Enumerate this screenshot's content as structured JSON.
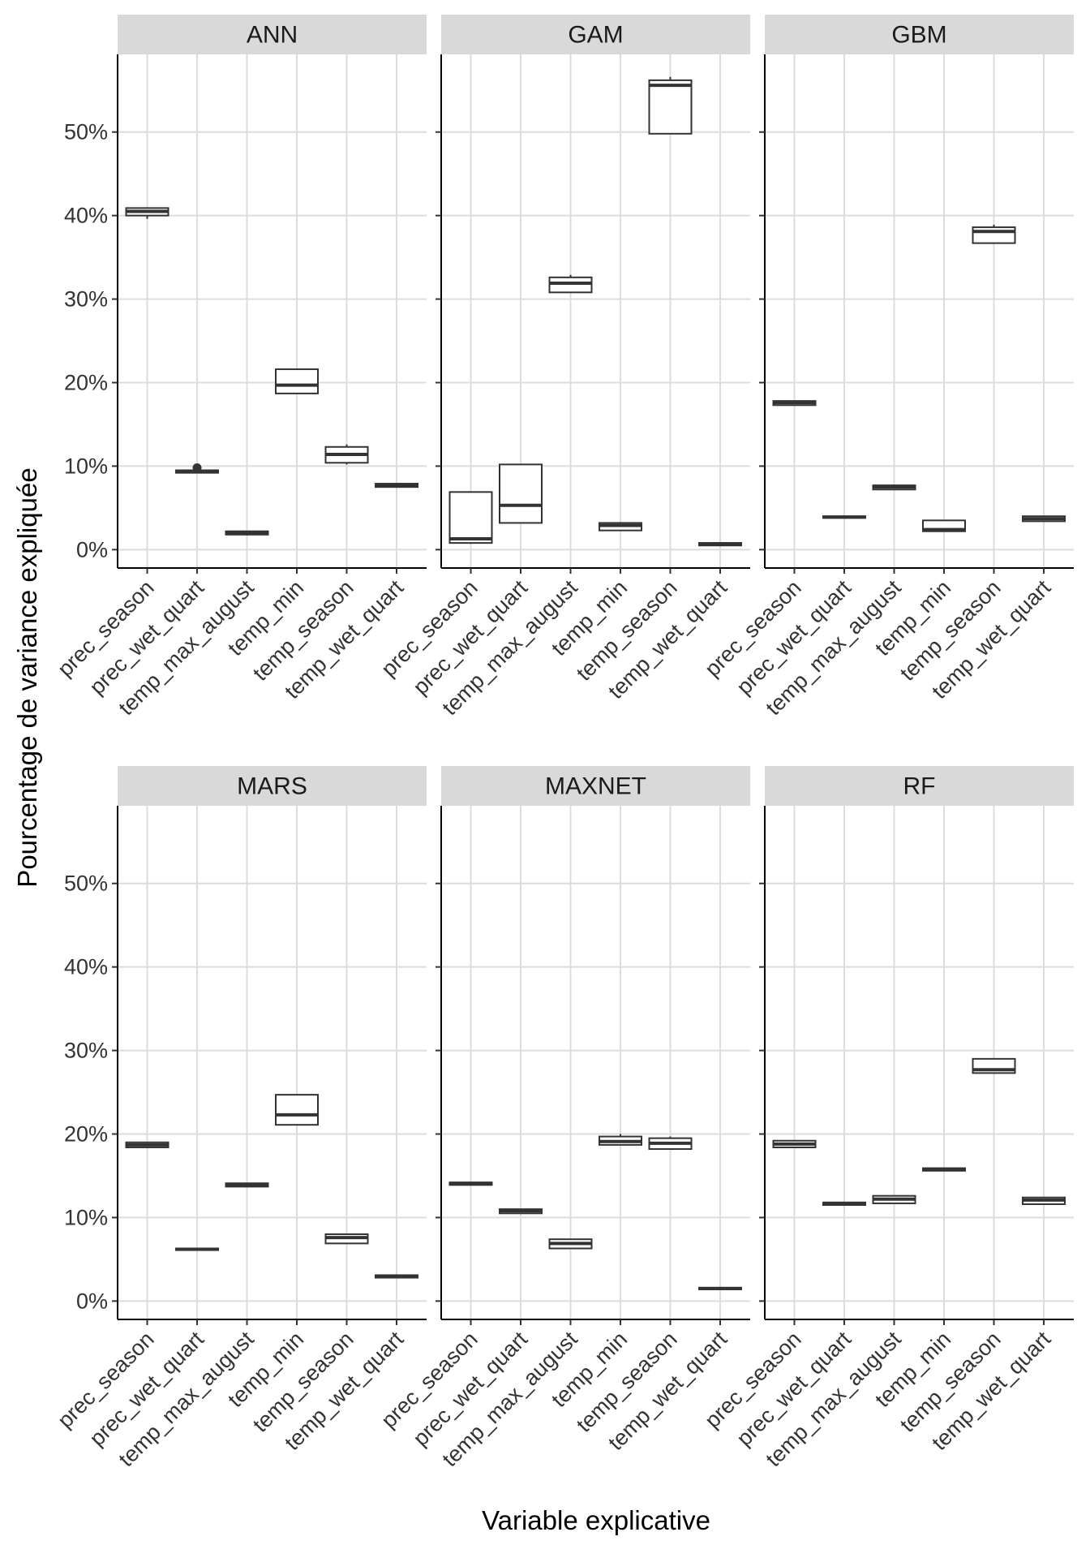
{
  "chart_data": {
    "type": "boxplot",
    "xlabel": "Variable explicative",
    "ylabel": "Pourcentage de variance expliquée",
    "ylim": [
      -2.2,
      59.3
    ],
    "y_ticks": [
      0,
      10,
      20,
      30,
      40,
      50
    ],
    "y_tick_labels": [
      "0%",
      "10%",
      "20%",
      "30%",
      "40%",
      "50%"
    ],
    "grid": true,
    "categories": [
      "prec_season",
      "prec_wet_quart",
      "temp_max_august",
      "temp_min",
      "temp_season",
      "temp_wet_quart"
    ],
    "panels": [
      {
        "name": "ANN",
        "boxes": [
          {
            "category": "prec_season",
            "min": 39.6,
            "q1": 40.0,
            "median": 40.5,
            "q3": 40.9,
            "max": 40.9
          },
          {
            "category": "prec_wet_quart",
            "min": 9.2,
            "q1": 9.2,
            "median": 9.4,
            "q3": 9.5,
            "max": 9.6,
            "outliers": [
              9.8
            ]
          },
          {
            "category": "temp_max_august",
            "min": 1.7,
            "q1": 1.8,
            "median": 2.0,
            "q3": 2.2,
            "max": 2.2
          },
          {
            "category": "temp_min",
            "min": 18.7,
            "q1": 18.7,
            "median": 19.7,
            "q3": 21.6,
            "max": 21.6
          },
          {
            "category": "temp_season",
            "min": 10.2,
            "q1": 10.4,
            "median": 11.4,
            "q3": 12.3,
            "max": 12.6
          },
          {
            "category": "temp_wet_quart",
            "min": 7.5,
            "q1": 7.5,
            "median": 7.7,
            "q3": 7.9,
            "max": 7.9
          }
        ]
      },
      {
        "name": "GAM",
        "boxes": [
          {
            "category": "prec_season",
            "min": 0.7,
            "q1": 0.8,
            "median": 1.3,
            "q3": 6.9,
            "max": 6.9
          },
          {
            "category": "prec_wet_quart",
            "min": 3.2,
            "q1": 3.2,
            "median": 5.3,
            "q3": 10.2,
            "max": 10.2
          },
          {
            "category": "temp_max_august",
            "min": 30.8,
            "q1": 30.8,
            "median": 31.9,
            "q3": 32.6,
            "max": 32.9
          },
          {
            "category": "temp_min",
            "min": 2.3,
            "q1": 2.3,
            "median": 2.9,
            "q3": 3.2,
            "max": 3.2
          },
          {
            "category": "temp_season",
            "min": 49.8,
            "q1": 49.8,
            "median": 55.6,
            "q3": 56.2,
            "max": 56.6
          },
          {
            "category": "temp_wet_quart",
            "min": 0.5,
            "q1": 0.5,
            "median": 0.7,
            "q3": 0.8,
            "max": 0.8
          }
        ]
      },
      {
        "name": "GBM",
        "boxes": [
          {
            "category": "prec_season",
            "min": 17.3,
            "q1": 17.3,
            "median": 17.6,
            "q3": 17.8,
            "max": 17.8
          },
          {
            "category": "prec_wet_quart",
            "min": 3.8,
            "q1": 3.8,
            "median": 3.9,
            "q3": 4.0,
            "max": 4.0
          },
          {
            "category": "temp_max_august",
            "min": 7.2,
            "q1": 7.2,
            "median": 7.5,
            "q3": 7.7,
            "max": 7.8
          },
          {
            "category": "temp_min",
            "min": 2.2,
            "q1": 2.2,
            "median": 2.4,
            "q3": 3.5,
            "max": 3.5
          },
          {
            "category": "temp_season",
            "min": 36.7,
            "q1": 36.7,
            "median": 38.1,
            "q3": 38.6,
            "max": 38.9
          },
          {
            "category": "temp_wet_quart",
            "min": 3.4,
            "q1": 3.4,
            "median": 3.7,
            "q3": 4.0,
            "max": 4.0
          }
        ]
      },
      {
        "name": "MARS",
        "boxes": [
          {
            "category": "prec_season",
            "min": 18.4,
            "q1": 18.4,
            "median": 18.7,
            "q3": 19.0,
            "max": 19.0
          },
          {
            "category": "prec_wet_quart",
            "min": 6.1,
            "q1": 6.1,
            "median": 6.2,
            "q3": 6.3,
            "max": 6.3
          },
          {
            "category": "temp_max_august",
            "min": 13.7,
            "q1": 13.7,
            "median": 13.9,
            "q3": 14.1,
            "max": 14.1
          },
          {
            "category": "temp_min",
            "min": 21.1,
            "q1": 21.1,
            "median": 22.3,
            "q3": 24.7,
            "max": 24.7
          },
          {
            "category": "temp_season",
            "min": 6.9,
            "q1": 6.9,
            "median": 7.6,
            "q3": 8.0,
            "max": 8.0
          },
          {
            "category": "temp_wet_quart",
            "min": 2.8,
            "q1": 2.8,
            "median": 3.0,
            "q3": 3.1,
            "max": 3.1
          }
        ]
      },
      {
        "name": "MAXNET",
        "boxes": [
          {
            "category": "prec_season",
            "min": 13.9,
            "q1": 13.9,
            "median": 14.1,
            "q3": 14.2,
            "max": 14.2
          },
          {
            "category": "prec_wet_quart",
            "min": 10.5,
            "q1": 10.5,
            "median": 10.8,
            "q3": 11.0,
            "max": 11.0
          },
          {
            "category": "temp_max_august",
            "min": 6.3,
            "q1": 6.3,
            "median": 6.9,
            "q3": 7.4,
            "max": 7.4
          },
          {
            "category": "temp_min",
            "min": 18.7,
            "q1": 18.7,
            "median": 19.1,
            "q3": 19.7,
            "max": 20.0
          },
          {
            "category": "temp_season",
            "min": 18.2,
            "q1": 18.2,
            "median": 18.9,
            "q3": 19.5,
            "max": 19.7
          },
          {
            "category": "temp_wet_quart",
            "min": 1.4,
            "q1": 1.4,
            "median": 1.5,
            "q3": 1.6,
            "max": 1.6
          }
        ]
      },
      {
        "name": "RF",
        "boxes": [
          {
            "category": "prec_season",
            "min": 18.4,
            "q1": 18.4,
            "median": 18.8,
            "q3": 19.2,
            "max": 19.2
          },
          {
            "category": "prec_wet_quart",
            "min": 11.5,
            "q1": 11.5,
            "median": 11.7,
            "q3": 11.8,
            "max": 11.8
          },
          {
            "category": "temp_max_august",
            "min": 11.7,
            "q1": 11.7,
            "median": 12.2,
            "q3": 12.6,
            "max": 12.6
          },
          {
            "category": "temp_min",
            "min": 15.6,
            "q1": 15.6,
            "median": 15.8,
            "q3": 15.9,
            "max": 15.9
          },
          {
            "category": "temp_season",
            "min": 27.3,
            "q1": 27.3,
            "median": 27.7,
            "q3": 29.0,
            "max": 29.0
          },
          {
            "category": "temp_wet_quart",
            "min": 11.6,
            "q1": 11.6,
            "median": 12.1,
            "q3": 12.4,
            "max": 12.4
          }
        ]
      }
    ]
  }
}
